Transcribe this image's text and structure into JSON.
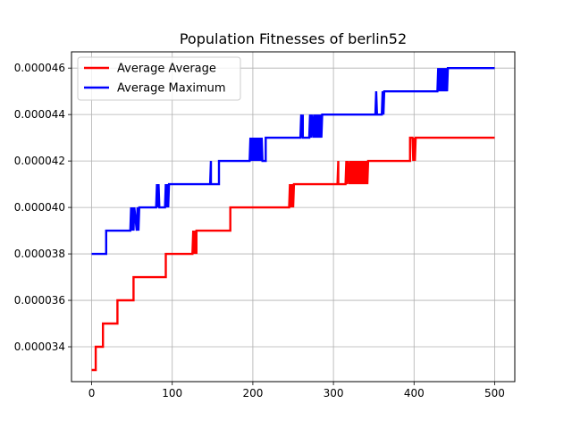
{
  "chart_data": {
    "type": "line",
    "title": "Population Fitnesses of berlin52",
    "xlabel": "",
    "ylabel": "",
    "xlim": [
      -25,
      525
    ],
    "ylim": [
      3.25e-05,
      4.67e-05
    ],
    "xticks": [
      0,
      100,
      200,
      300,
      400,
      500
    ],
    "xtick_labels": [
      "0",
      "100",
      "200",
      "300",
      "400",
      "500"
    ],
    "yticks": [
      3.4e-05,
      3.6e-05,
      3.8e-05,
      4e-05,
      4.2e-05,
      4.4e-05,
      4.6e-05
    ],
    "ytick_labels": [
      "0.000034",
      "0.000036",
      "0.000038",
      "0.000040",
      "0.000042",
      "0.000044",
      "0.000046"
    ],
    "grid": true,
    "legend_position": "upper-left",
    "series": [
      {
        "name": "Average Average",
        "color": "#ff0000",
        "x": [
          0,
          5,
          5,
          14,
          14,
          32,
          32,
          52,
          52,
          92,
          92,
          125,
          126,
          127,
          127,
          128,
          129,
          130,
          130,
          172,
          172,
          245,
          246,
          247,
          248,
          248,
          249,
          250,
          251,
          251,
          305,
          306,
          306,
          307,
          315,
          316,
          317,
          318,
          320,
          321,
          322,
          323,
          324,
          325,
          326,
          327,
          328,
          329,
          330,
          331,
          332,
          333,
          334,
          335,
          336,
          337,
          338,
          339,
          340,
          341,
          342,
          343,
          344,
          395,
          395,
          398,
          399,
          400,
          401,
          402,
          500
        ],
        "y": [
          3.3e-05,
          3.3e-05,
          3.4e-05,
          3.4e-05,
          3.5e-05,
          3.5e-05,
          3.6e-05,
          3.6e-05,
          3.7e-05,
          3.7e-05,
          3.8e-05,
          3.8e-05,
          3.9e-05,
          3.8e-05,
          3.9e-05,
          3.8e-05,
          3.9e-05,
          3.8e-05,
          3.9e-05,
          3.9e-05,
          4e-05,
          4e-05,
          4.1e-05,
          4e-05,
          4.1e-05,
          4e-05,
          4.1e-05,
          4e-05,
          4.1e-05,
          4.1e-05,
          4.1e-05,
          4.2e-05,
          4.1e-05,
          4.1e-05,
          4.1e-05,
          4.2e-05,
          4.1e-05,
          4.2e-05,
          4.1e-05,
          4.2e-05,
          4.1e-05,
          4.2e-05,
          4.1e-05,
          4.2e-05,
          4.1e-05,
          4.2e-05,
          4.1e-05,
          4.2e-05,
          4.1e-05,
          4.2e-05,
          4.1e-05,
          4.2e-05,
          4.1e-05,
          4.2e-05,
          4.1e-05,
          4.2e-05,
          4.1e-05,
          4.2e-05,
          4.1e-05,
          4.2e-05,
          4.1e-05,
          4.2e-05,
          4.2e-05,
          4.2e-05,
          4.3e-05,
          4.3e-05,
          4.2e-05,
          4.3e-05,
          4.2e-05,
          4.3e-05,
          4.3e-05
        ]
      },
      {
        "name": "Average Maximum",
        "color": "#0000ff",
        "x": [
          0,
          18,
          18,
          48,
          49,
          50,
          51,
          52,
          53,
          56,
          57,
          58,
          59,
          60,
          80,
          81,
          82,
          83,
          84,
          91,
          92,
          93,
          94,
          95,
          96,
          97,
          147,
          148,
          148,
          158,
          158,
          196,
          197,
          198,
          199,
          200,
          201,
          202,
          203,
          204,
          205,
          206,
          207,
          208,
          209,
          210,
          211,
          212,
          216,
          216,
          259,
          260,
          261,
          262,
          262,
          270,
          271,
          272,
          273,
          275,
          276,
          277,
          278,
          279,
          280,
          281,
          282,
          283,
          284,
          285,
          286,
          286,
          352,
          353,
          354,
          355,
          360,
          361,
          362,
          363,
          364,
          429,
          430,
          431,
          432,
          433,
          434,
          435,
          436,
          437,
          438,
          439,
          440,
          441,
          442,
          443,
          500
        ],
        "y": [
          3.8e-05,
          3.8e-05,
          3.9e-05,
          3.9e-05,
          4e-05,
          3.9e-05,
          4e-05,
          3.9e-05,
          4e-05,
          3.9e-05,
          4e-05,
          3.9e-05,
          4e-05,
          4e-05,
          4e-05,
          4.1e-05,
          4e-05,
          4.1e-05,
          4e-05,
          4e-05,
          4.1e-05,
          4e-05,
          4.1e-05,
          4e-05,
          4.1e-05,
          4.1e-05,
          4.1e-05,
          4.2e-05,
          4.1e-05,
          4.1e-05,
          4.2e-05,
          4.2e-05,
          4.3e-05,
          4.2e-05,
          4.3e-05,
          4.2e-05,
          4.3e-05,
          4.2e-05,
          4.3e-05,
          4.2e-05,
          4.3e-05,
          4.2e-05,
          4.3e-05,
          4.2e-05,
          4.3e-05,
          4.2e-05,
          4.3e-05,
          4.2e-05,
          4.2e-05,
          4.3e-05,
          4.3e-05,
          4.4e-05,
          4.3e-05,
          4.4e-05,
          4.3e-05,
          4.3e-05,
          4.4e-05,
          4.3e-05,
          4.4e-05,
          4.3e-05,
          4.4e-05,
          4.3e-05,
          4.4e-05,
          4.3e-05,
          4.4e-05,
          4.3e-05,
          4.4e-05,
          4.3e-05,
          4.4e-05,
          4.3e-05,
          4.4e-05,
          4.4e-05,
          4.4e-05,
          4.5e-05,
          4.4e-05,
          4.4e-05,
          4.4e-05,
          4.5e-05,
          4.4e-05,
          4.5e-05,
          4.5e-05,
          4.5e-05,
          4.6e-05,
          4.5e-05,
          4.6e-05,
          4.5e-05,
          4.6e-05,
          4.5e-05,
          4.6e-05,
          4.5e-05,
          4.6e-05,
          4.5e-05,
          4.6e-05,
          4.5e-05,
          4.6e-05,
          4.6e-05,
          4.6e-05
        ]
      }
    ]
  }
}
